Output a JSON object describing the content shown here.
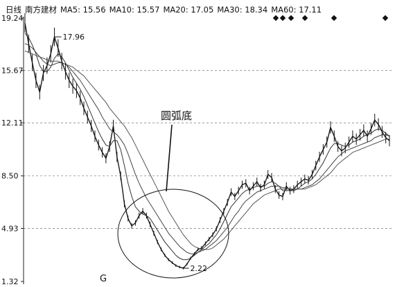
{
  "chart_data": {
    "type": "line",
    "title": "日线 南方建材 MA5: 15.56 MA10: 15.57 MA20: 17.05 MA30: 18.34 MA60: 17.11",
    "title_parts": [
      "日线",
      "南方建材",
      "MA5: 15.56",
      "MA10: 15.57",
      "MA20: 17.05",
      "MA30: 18.34",
      "MA60: 17.11"
    ],
    "y_ticks": [
      "19.24",
      "15.67",
      "12.11",
      "8.50",
      "4.93",
      "1.32"
    ],
    "y_tick_values": [
      19.24,
      15.67,
      12.11,
      8.5,
      4.93,
      1.32
    ],
    "ylim": [
      1.32,
      19.24
    ],
    "x_marker": "G",
    "grid": "horizontal dashed",
    "annotations": [
      {
        "text": "17.96",
        "value": 17.96
      },
      {
        "text": "2.22",
        "value": 2.22
      },
      {
        "text": "圆弧底"
      }
    ],
    "series": [
      {
        "values": [
          18.9,
          17.5,
          16.2,
          15.0,
          14.2,
          15.5,
          16.0,
          16.8,
          17.96,
          17.2,
          16.3,
          15.6,
          15.0,
          14.6,
          14.3,
          13.8,
          13.1,
          12.5,
          11.9,
          11.2,
          10.6,
          10.1,
          9.7,
          10.5,
          11.9,
          9.8,
          8.5,
          6.6,
          5.6,
          5.1,
          5.3,
          5.8,
          6.1,
          5.8,
          5.2,
          4.6,
          4.0,
          3.5,
          3.1,
          2.8,
          2.6,
          2.4,
          2.3,
          2.22,
          2.5,
          2.9,
          3.2,
          3.5,
          3.6,
          3.9,
          4.2,
          4.5,
          4.9,
          5.5,
          6.1,
          6.7,
          7.4,
          7.1,
          7.5,
          7.9,
          8.0,
          7.5,
          7.8,
          8.1,
          7.7,
          7.9,
          8.6,
          8.4,
          7.6,
          7.2,
          7.1,
          7.8,
          7.5,
          7.6,
          7.9,
          8.1,
          8.3,
          8.2,
          8.6,
          9.2,
          9.8,
          10.3,
          10.8,
          11.8,
          11.2,
          10.5,
          10.2,
          10.4,
          10.8,
          11.2,
          11.0,
          11.3,
          11.6,
          11.2,
          11.7,
          12.3,
          12.0,
          11.5,
          11.1,
          10.9
        ]
      },
      {
        "values": [
          18.2,
          17.9,
          17.4,
          16.8,
          16.0,
          15.6,
          15.6,
          15.9,
          16.5,
          16.8,
          16.6,
          16.2,
          15.7,
          15.2,
          14.8,
          14.4,
          13.9,
          13.3,
          12.7,
          12.1,
          11.5,
          11.0,
          10.6,
          10.5,
          10.9,
          10.9,
          10.3,
          9.2,
          8.0,
          7.1,
          6.4,
          6.1,
          5.9,
          5.8,
          5.6,
          5.2,
          4.8,
          4.4,
          4.0,
          3.7,
          3.4,
          3.1,
          2.9,
          2.8,
          2.8,
          2.9,
          3.1,
          3.3,
          3.5,
          3.7,
          3.9,
          4.2,
          4.5,
          4.9,
          5.4,
          5.9,
          6.4,
          6.7,
          7.0,
          7.3,
          7.5,
          7.6,
          7.7,
          7.8,
          7.8,
          7.8,
          8.0,
          8.1,
          8.0,
          7.8,
          7.5,
          7.5,
          7.5,
          7.5,
          7.6,
          7.8,
          8.0,
          8.1,
          8.3,
          8.6,
          9.0,
          9.4,
          9.9,
          10.4,
          10.7,
          10.7,
          10.6,
          10.5,
          10.6,
          10.8,
          10.9,
          11.0,
          11.2,
          11.3,
          11.4,
          11.6,
          11.7,
          11.6,
          11.4,
          11.2
        ]
      },
      {
        "values": [
          17.5,
          17.4,
          17.2,
          16.9,
          16.6,
          16.3,
          16.1,
          16.0,
          16.1,
          16.2,
          16.2,
          16.1,
          15.9,
          15.6,
          15.3,
          15.0,
          14.6,
          14.2,
          13.8,
          13.4,
          13.0,
          12.5,
          12.1,
          11.7,
          11.5,
          11.3,
          11.0,
          10.6,
          10.0,
          9.3,
          8.6,
          8.0,
          7.5,
          7.0,
          6.6,
          6.2,
          5.8,
          5.4,
          5.0,
          4.6,
          4.3,
          4.0,
          3.7,
          3.5,
          3.3,
          3.2,
          3.2,
          3.3,
          3.4,
          3.5,
          3.7,
          3.9,
          4.1,
          4.4,
          4.7,
          5.0,
          5.4,
          5.8,
          6.1,
          6.5,
          6.8,
          7.0,
          7.2,
          7.4,
          7.5,
          7.6,
          7.7,
          7.8,
          7.8,
          7.8,
          7.7,
          7.7,
          7.6,
          7.6,
          7.6,
          7.6,
          7.7,
          7.8,
          7.9,
          8.1,
          8.3,
          8.6,
          8.9,
          9.2,
          9.5,
          9.8,
          10.0,
          10.2,
          10.3,
          10.4,
          10.5,
          10.6,
          10.7,
          10.8,
          10.9,
          11.1,
          11.2,
          11.3,
          11.3,
          11.2
        ]
      },
      {
        "values": [
          17.0,
          16.9,
          16.8,
          16.7,
          16.6,
          16.5,
          16.4,
          16.3,
          16.3,
          16.3,
          16.2,
          16.1,
          16.0,
          15.9,
          15.7,
          15.5,
          15.3,
          15.0,
          14.7,
          14.4,
          14.1,
          13.8,
          13.5,
          13.1,
          12.8,
          12.5,
          12.2,
          11.9,
          11.5,
          11.1,
          10.6,
          10.1,
          9.6,
          9.1,
          8.6,
          8.1,
          7.6,
          7.1,
          6.6,
          6.1,
          5.7,
          5.3,
          4.9,
          4.5,
          4.2,
          3.9,
          3.7,
          3.6,
          3.5,
          3.5,
          3.5,
          3.6,
          3.8,
          4.0,
          4.2,
          4.5,
          4.8,
          5.1,
          5.4,
          5.7,
          6.0,
          6.3,
          6.6,
          6.8,
          7.0,
          7.2,
          7.3,
          7.4,
          7.5,
          7.6,
          7.6,
          7.6,
          7.6,
          7.6,
          7.6,
          7.6,
          7.6,
          7.7,
          7.8,
          7.9,
          8.1,
          8.3,
          8.5,
          8.7,
          9.0,
          9.3,
          9.5,
          9.7,
          9.9,
          10.1,
          10.2,
          10.3,
          10.4,
          10.5,
          10.6,
          10.7,
          10.8,
          10.9,
          11.0,
          11.0
        ]
      }
    ],
    "top_right_markers": 6
  }
}
